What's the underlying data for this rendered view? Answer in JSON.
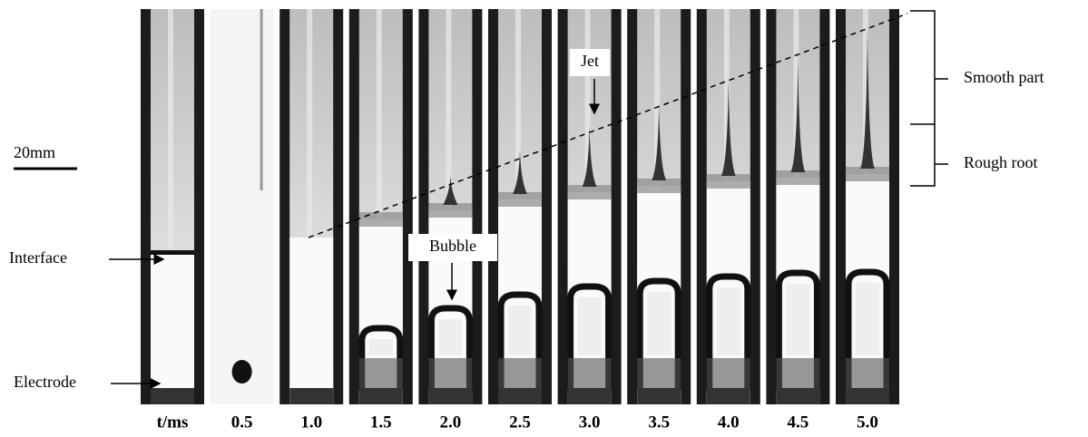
{
  "figure": {
    "scale_bar": "20mm",
    "labels": {
      "interface": "Interface",
      "electrode": "Electrode",
      "jet": "Jet",
      "bubble": "Bubble",
      "smooth_part": "Smooth part",
      "rough_root": "Rough root"
    },
    "time_labels": [
      "t/ms",
      "0.5",
      "1.0",
      "1.5",
      "2.0",
      "2.5",
      "3.0",
      "3.5",
      "4.0",
      "4.5",
      "5.0"
    ]
  }
}
